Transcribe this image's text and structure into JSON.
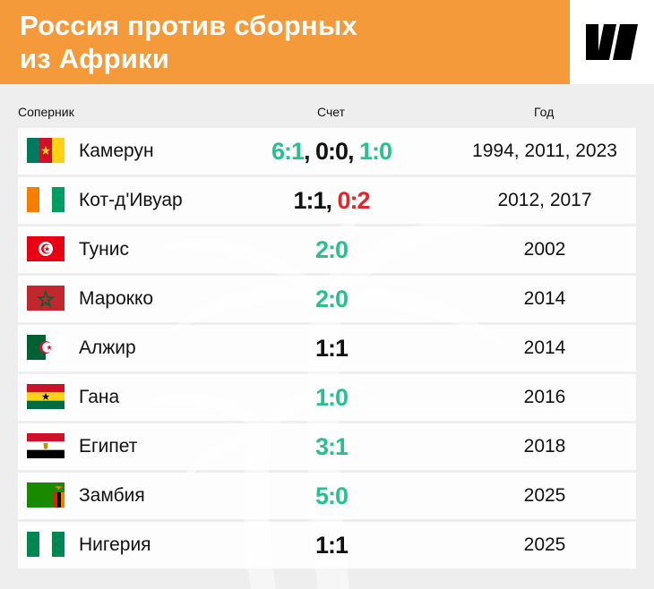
{
  "header": {
    "title_line1": "Россия против сборных",
    "title_line2": "из Африки"
  },
  "columns": {
    "opponent": "Соперник",
    "score": "Счет",
    "year": "Год"
  },
  "rows": [
    {
      "team": "Камерун",
      "flag": "cameroon-flag-icon",
      "scores": [
        {
          "text": "6:1",
          "result": "win"
        },
        {
          "text": "0:0",
          "result": "draw"
        },
        {
          "text": "1:0",
          "result": "win"
        }
      ],
      "years": "1994, 2011, 2023"
    },
    {
      "team": "Кот-д'Ивуар",
      "flag": "ivory-coast-flag-icon",
      "scores": [
        {
          "text": "1:1",
          "result": "draw"
        },
        {
          "text": "0:2",
          "result": "loss"
        }
      ],
      "years": "2012, 2017"
    },
    {
      "team": "Тунис",
      "flag": "tunisia-flag-icon",
      "scores": [
        {
          "text": "2:0",
          "result": "win"
        }
      ],
      "years": "2002"
    },
    {
      "team": "Марокко",
      "flag": "morocco-flag-icon",
      "scores": [
        {
          "text": "2:0",
          "result": "win"
        }
      ],
      "years": "2014"
    },
    {
      "team": "Алжир",
      "flag": "algeria-flag-icon",
      "scores": [
        {
          "text": "1:1",
          "result": "draw"
        }
      ],
      "years": "2014"
    },
    {
      "team": "Гана",
      "flag": "ghana-flag-icon",
      "scores": [
        {
          "text": "1:0",
          "result": "win"
        }
      ],
      "years": "2016"
    },
    {
      "team": "Египет",
      "flag": "egypt-flag-icon",
      "scores": [
        {
          "text": "3:1",
          "result": "win"
        }
      ],
      "years": "2018"
    },
    {
      "team": "Замбия",
      "flag": "zambia-flag-icon",
      "scores": [
        {
          "text": "5:0",
          "result": "win"
        }
      ],
      "years": "2025"
    },
    {
      "team": "Нигерия",
      "flag": "nigeria-flag-icon",
      "scores": [
        {
          "text": "1:1",
          "result": "draw"
        }
      ],
      "years": "2025"
    }
  ],
  "colors": {
    "header_bg": "#f59a3a",
    "win": "#29c08e",
    "draw": "#111111",
    "loss": "#e2262a"
  },
  "logo": "brand-logo-icon",
  "background_decoration": "palm-tree-icon"
}
